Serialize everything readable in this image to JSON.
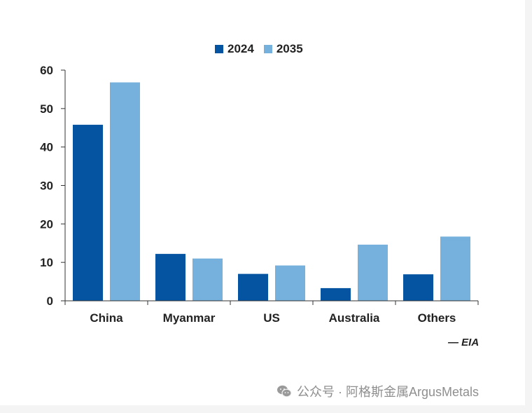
{
  "legend": {
    "items": [
      {
        "label": "2024",
        "color": "#0554a1"
      },
      {
        "label": "2035",
        "color": "#76b0dd"
      }
    ]
  },
  "source": "— EIA",
  "watermark": {
    "text": "公众号 · 阿格斯金属ArgusMetals",
    "icon": "wechat-icon"
  },
  "chart_data": {
    "type": "bar",
    "categories": [
      "China",
      "Myanmar",
      "US",
      "Australia",
      "Others"
    ],
    "series": [
      {
        "name": "2024",
        "values": [
          45.8,
          12.2,
          7.0,
          3.3,
          6.9
        ],
        "color": "#0554a1"
      },
      {
        "name": "2035",
        "values": [
          56.8,
          11.0,
          9.2,
          14.6,
          16.7
        ],
        "color": "#76b0dd"
      }
    ],
    "yticks": [
      0,
      10,
      20,
      30,
      40,
      50,
      60
    ],
    "ylim": [
      0,
      60
    ],
    "grid": false,
    "legend_position": "top"
  }
}
